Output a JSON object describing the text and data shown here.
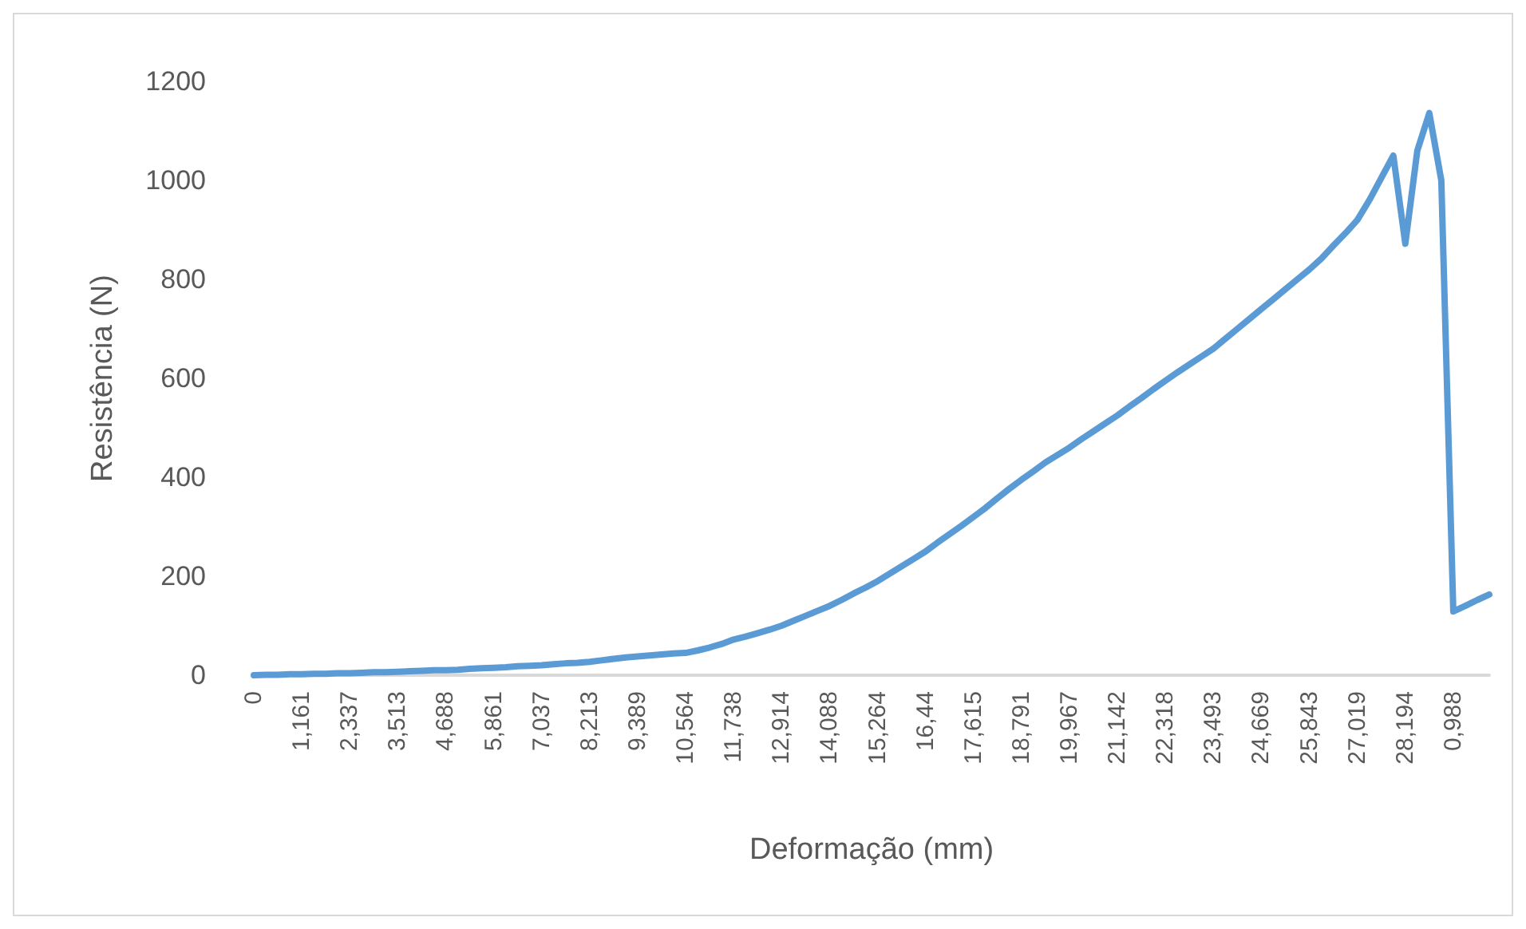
{
  "chart_data": {
    "type": "line",
    "xlabel": "Deformação (mm)",
    "ylabel": "Resistência (N)",
    "categories": [
      "0",
      null,
      null,
      null,
      "1,161",
      null,
      null,
      null,
      "2,337",
      null,
      null,
      null,
      "3,513",
      null,
      null,
      null,
      "4,688",
      null,
      null,
      null,
      "5,861",
      null,
      null,
      null,
      "7,037",
      null,
      null,
      null,
      "8,213",
      null,
      null,
      null,
      "9,389",
      null,
      null,
      null,
      "10,564",
      null,
      null,
      null,
      "11,738",
      null,
      null,
      null,
      "12,914",
      null,
      null,
      null,
      "14,088",
      null,
      null,
      null,
      "15,264",
      null,
      null,
      null,
      "16,44",
      null,
      null,
      null,
      "17,615",
      null,
      null,
      null,
      "18,791",
      null,
      null,
      null,
      "19,967",
      null,
      null,
      null,
      "21,142",
      null,
      null,
      null,
      "22,318",
      null,
      null,
      null,
      "23,493",
      null,
      null,
      null,
      "24,669",
      null,
      null,
      null,
      "25,843",
      null,
      null,
      null,
      "27,019",
      null,
      null,
      null,
      "28,194",
      null,
      null,
      null,
      "0,988",
      null,
      null,
      null
    ],
    "series": [
      {
        "color": "#5b9bd5",
        "values": [
          0,
          1,
          1,
          2,
          2,
          3,
          3,
          4,
          4,
          5,
          6,
          6,
          7,
          8,
          9,
          10,
          10,
          11,
          13,
          14,
          15,
          16,
          18,
          19,
          20,
          22,
          24,
          25,
          27,
          30,
          33,
          36,
          38,
          40,
          42,
          44,
          45,
          50,
          56,
          63,
          72,
          78,
          85,
          92,
          100,
          110,
          120,
          130,
          140,
          152,
          165,
          177,
          190,
          205,
          220,
          235,
          250,
          268,
          285,
          302,
          320,
          338,
          358,
          377,
          395,
          412,
          430,
          445,
          460,
          477,
          493,
          509,
          525,
          543,
          560,
          578,
          595,
          612,
          628,
          644,
          660,
          680,
          700,
          720,
          740,
          760,
          780,
          800,
          820,
          842,
          868,
          893,
          920,
          960,
          1005,
          1050,
          872,
          1060,
          1136,
          1000,
          129,
          140,
          152,
          163
        ]
      }
    ],
    "ylim": [
      0,
      1200
    ],
    "yticks": [
      0,
      200,
      400,
      600,
      800,
      1000,
      1200
    ],
    "grid": false,
    "marker": "none",
    "line_style": "solid"
  }
}
